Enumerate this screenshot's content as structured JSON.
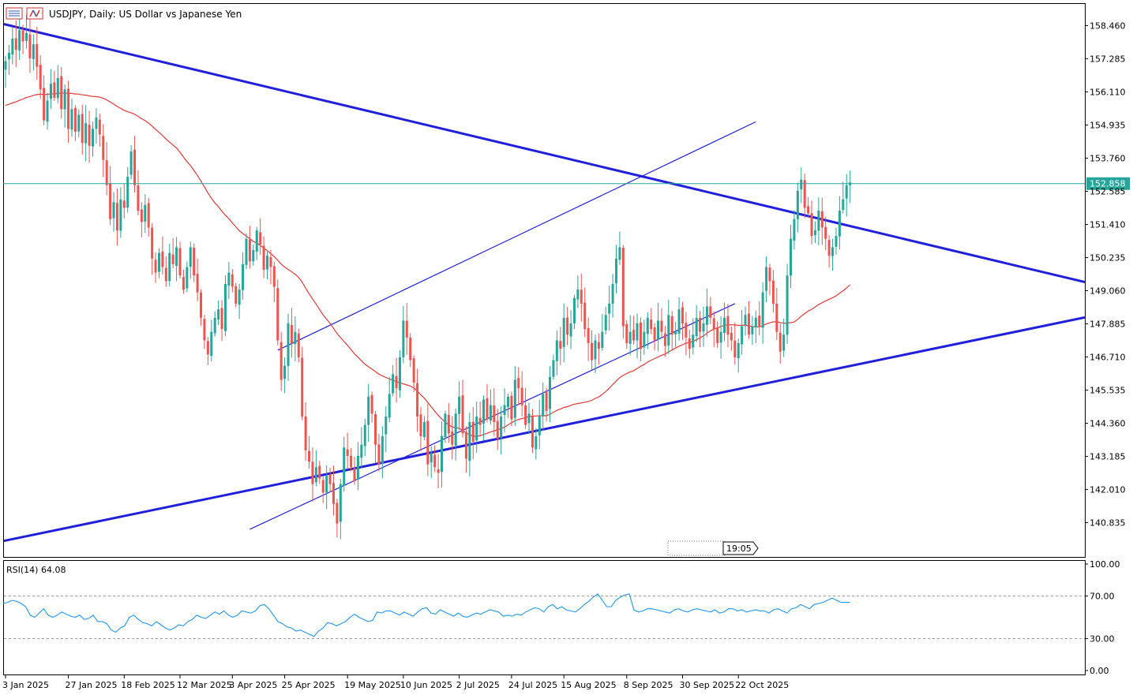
{
  "header": {
    "title": "USDJPY, Daily:  US Dollar vs Japanese Yen",
    "time_label": "19:05"
  },
  "colors": {
    "bull": "#26a69a",
    "bear": "#ef5350",
    "ma": "#e53935",
    "trend_line": "#1f1fdc",
    "rsi_line": "#2196f3",
    "price_line": "#26a69a"
  },
  "chart_data": [
    {
      "type": "candlestick",
      "title": "USDJPY, Daily:  US Dollar vs Japanese Yen",
      "ylim": [
        140.2,
        158.9
      ],
      "y_ticks": [
        "158.460",
        "157.285",
        "156.110",
        "154.935",
        "153.760",
        "152.585",
        "151.410",
        "150.235",
        "149.060",
        "147.885",
        "146.710",
        "145.535",
        "144.360",
        "143.185",
        "142.010",
        "140.835"
      ],
      "x_ticks": [
        "3 Jan 2025",
        "27 Jan 2025",
        "18 Feb 2025",
        "12 Mar 2025",
        "3 Apr 2025",
        "25 Apr 2025",
        "19 May 2025",
        "10 Jun 2025",
        "2 Jul 2025",
        "24 Jul 2025",
        "15 Aug 2025",
        "8 Sep 2025",
        "30 Sep 2025",
        "22 Oct 2025"
      ],
      "current_price": "152.858",
      "closes": [
        157.2,
        157.5,
        158.0,
        157.6,
        158.3,
        157.9,
        158.2,
        157.3,
        157.8,
        157.0,
        156.2,
        155.1,
        155.8,
        156.4,
        155.9,
        156.6,
        155.5,
        156.2,
        154.8,
        155.5,
        154.7,
        155.3,
        154.3,
        155.0,
        154.2,
        154.8,
        155.2,
        154.6,
        153.7,
        152.8,
        151.6,
        152.2,
        151.2,
        152.3,
        152.0,
        153.1,
        154.0,
        152.8,
        151.9,
        151.5,
        152.1,
        151.3,
        150.2,
        149.7,
        150.4,
        149.9,
        149.4,
        150.4,
        150.0,
        150.6,
        149.6,
        149.1,
        149.9,
        150.6,
        149.6,
        149.0,
        148.1,
        147.3,
        146.8,
        147.6,
        148.1,
        148.4,
        147.7,
        149.3,
        149.7,
        149.2,
        148.6,
        149.1,
        150.0,
        150.9,
        150.1,
        150.5,
        151.2,
        150.7,
        149.8,
        150.3,
        149.9,
        149.2,
        147.3,
        145.9,
        146.4,
        147.9,
        147.2,
        147.6,
        146.7,
        144.6,
        143.4,
        143.0,
        142.2,
        142.8,
        142.4,
        141.9,
        142.5,
        142.2,
        141.5,
        140.8,
        142.2,
        143.5,
        143.2,
        142.8,
        142.3,
        143.2,
        143.6,
        144.3,
        145.3,
        144.7,
        143.6,
        142.9,
        143.9,
        144.6,
        145.4,
        146.1,
        145.6,
        146.7,
        148.0,
        147.4,
        146.6,
        145.8,
        144.6,
        143.9,
        144.4,
        142.9,
        143.3,
        142.8,
        142.6,
        143.9,
        144.7,
        144.0,
        143.6,
        144.7,
        145.3,
        144.0,
        143.1,
        144.4,
        143.7,
        144.6,
        144.3,
        145.2,
        144.5,
        145.0,
        144.4,
        143.8,
        144.6,
        145.0,
        145.3,
        144.5,
        145.9,
        145.6,
        145.0,
        144.3,
        144.7,
        143.5,
        143.9,
        144.6,
        145.4,
        144.8,
        146.0,
        146.6,
        147.3,
        147.0,
        148.1,
        147.5,
        147.9,
        148.8,
        149.1,
        148.6,
        147.7,
        147.2,
        146.6,
        147.3,
        147.0,
        147.6,
        148.2,
        148.6,
        149.3,
        150.2,
        150.6,
        147.8,
        147.2,
        147.6,
        147.3,
        147.9,
        147.0,
        147.6,
        148.1,
        147.7,
        147.3,
        148.0,
        147.6,
        147.1,
        148.2,
        147.5,
        147.6,
        148.4,
        147.9,
        147.4,
        147.0,
        147.5,
        148.1,
        147.6,
        147.9,
        148.5,
        148.1,
        147.7,
        147.2,
        147.6,
        148.1,
        147.5,
        147.3,
        146.7,
        147.2,
        147.8,
        148.2,
        147.5,
        147.8,
        148.1,
        147.8,
        149.0,
        149.9,
        149.4,
        148.6,
        147.6,
        146.9,
        147.5,
        149.6,
        150.9,
        151.6,
        152.6,
        153.0,
        152.0,
        151.8,
        151.0,
        151.2,
        151.9,
        151.3,
        150.9,
        150.3,
        150.6,
        151.0,
        151.9,
        152.3,
        152.8,
        152.9
      ],
      "ma_period": 50,
      "trendlines": [
        {
          "x": [
            "3 Jan 2025",
            "29 Oct 2025"
          ],
          "y": [
            158.5,
            152.15
          ],
          "bold": true
        },
        {
          "x": [
            "3 Jan 2025",
            "29 Oct 2025"
          ],
          "y": [
            140.2,
            145.7
          ],
          "bold": true
        },
        {
          "x": [
            "11 Apr 2025",
            "21 Oct 2025"
          ],
          "y": [
            140.6,
            148.6
          ],
          "bold": false
        },
        {
          "x": [
            "21 Apr 2025",
            "31 Oct 2025"
          ],
          "y": [
            146.95,
            155.05
          ],
          "bold": false
        }
      ]
    },
    {
      "type": "line",
      "title": "RSI(14) 64.08",
      "ylim": [
        0,
        100
      ],
      "y_ticks": [
        "100.00",
        "70.00",
        "30.00",
        "0.00"
      ],
      "levels": [
        70,
        30
      ],
      "values": [
        63,
        64,
        66,
        65,
        63,
        60,
        52,
        50,
        54,
        58,
        52,
        50,
        52,
        55,
        53,
        51,
        50,
        52,
        48,
        49,
        52,
        46,
        46,
        44,
        38,
        36,
        40,
        42,
        50,
        52,
        48,
        45,
        44,
        42,
        46,
        43,
        40,
        38,
        40,
        43,
        42,
        46,
        48,
        52,
        50,
        49,
        52,
        55,
        53,
        56,
        52,
        50,
        52,
        56,
        55,
        54,
        56,
        61,
        62,
        58,
        52,
        46,
        44,
        41,
        40,
        37,
        38,
        36,
        34,
        32,
        37,
        40,
        45,
        44,
        42,
        44,
        46,
        50,
        53,
        50,
        48,
        46,
        47,
        55,
        54,
        56,
        56,
        54,
        52,
        55,
        53,
        51,
        55,
        58,
        59,
        54,
        53,
        57,
        55,
        53,
        51,
        54,
        51,
        50,
        52,
        54,
        53,
        55,
        57,
        56,
        55,
        51,
        52,
        51,
        53,
        52,
        55,
        57,
        59,
        58,
        55,
        60,
        62,
        58,
        60,
        57,
        56,
        55,
        58,
        62,
        65,
        69,
        72,
        66,
        60,
        60,
        66,
        69,
        71,
        72,
        57,
        55,
        56,
        58,
        58,
        57,
        56,
        55,
        54,
        57,
        58,
        56,
        55,
        57,
        58,
        57,
        56,
        55,
        57,
        54,
        55,
        58,
        58,
        56,
        57,
        55,
        56,
        57,
        56,
        56,
        54,
        57,
        58,
        56,
        54,
        58,
        59,
        62,
        60,
        58,
        62,
        63,
        64,
        66,
        68,
        66,
        64,
        64,
        64
      ]
    }
  ]
}
